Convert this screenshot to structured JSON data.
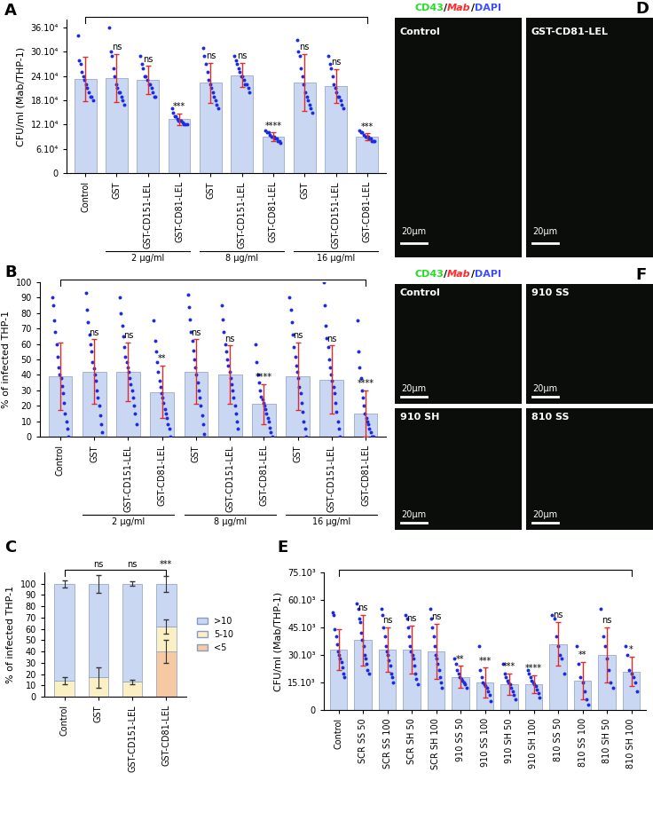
{
  "chart_data": [
    {
      "type": "bar",
      "title": "A",
      "y_label": "CFU/ml (Mab/THP-1)",
      "categories": [
        "Control",
        "GST",
        "GST-CD151-LEL",
        "GST-CD81-LEL",
        "GST",
        "GST-CD151-LEL",
        "GST-CD81-LEL",
        "GST",
        "GST-CD151-LEL",
        "GST-CD81-LEL"
      ],
      "category_groups": [
        null,
        "2 µg/ml",
        "2 µg/ml",
        "2 µg/ml",
        "8 µg/ml",
        "8 µg/ml",
        "8 µg/ml",
        "16 µg/ml",
        "16 µg/ml",
        "16 µg/ml"
      ],
      "values": [
        233000,
        235000,
        230000,
        133000,
        223000,
        242000,
        90000,
        224000,
        215000,
        90000
      ],
      "errors": [
        55000,
        60000,
        35000,
        15000,
        50000,
        30000,
        10000,
        70000,
        42000,
        8000
      ],
      "points": [
        [
          340000,
          280000,
          270000,
          250000,
          240000,
          230000,
          220000,
          210000,
          200000,
          190000,
          190000,
          180000
        ],
        [
          360000,
          300000,
          290000,
          260000,
          240000,
          220000,
          210000,
          200000,
          200000,
          190000,
          180000,
          170000
        ],
        [
          290000,
          270000,
          260000,
          240000,
          240000,
          230000,
          220000,
          220000,
          210000,
          200000,
          190000,
          190000
        ],
        [
          160000,
          150000,
          140000,
          140000,
          135000,
          130000,
          130000,
          130000,
          125000,
          120000,
          120000,
          120000
        ],
        [
          310000,
          290000,
          270000,
          250000,
          230000,
          220000,
          210000,
          200000,
          190000,
          180000,
          170000,
          160000
        ],
        [
          290000,
          280000,
          270000,
          260000,
          250000,
          240000,
          240000,
          230000,
          220000,
          220000,
          210000,
          200000
        ],
        [
          105000,
          100000,
          100000,
          95000,
          90000,
          90000,
          90000,
          85000,
          85000,
          80000,
          80000,
          75000
        ],
        [
          330000,
          300000,
          290000,
          260000,
          240000,
          220000,
          200000,
          190000,
          180000,
          170000,
          160000,
          150000
        ],
        [
          290000,
          270000,
          260000,
          240000,
          220000,
          210000,
          200000,
          190000,
          190000,
          180000,
          170000,
          160000
        ],
        [
          105000,
          100000,
          100000,
          95000,
          90000,
          90000,
          90000,
          85000,
          85000,
          80000,
          80000,
          80000
        ]
      ],
      "significance": [
        null,
        "ns",
        "ns",
        "***",
        "ns",
        "ns",
        "****",
        "ns",
        "ns",
        "***"
      ],
      "color": "#cad7f2",
      "ylim": [
        0,
        380000
      ],
      "yticks": [
        0,
        {
          "value": 60000,
          "label": "6.10⁴"
        },
        {
          "value": 120000,
          "label": "12.10⁴"
        },
        {
          "value": 180000,
          "label": "18.10⁴"
        },
        {
          "value": 240000,
          "label": "24.10⁴"
        },
        {
          "value": 300000,
          "label": "30.10⁴"
        },
        {
          "value": 360000,
          "label": "36.10⁴"
        }
      ]
    },
    {
      "type": "bar",
      "title": "B",
      "y_label": "% of infected THP-1",
      "categories": [
        "Control",
        "GST",
        "GST-CD151-LEL",
        "GST-CD81-LEL",
        "GST",
        "GST-CD151-LEL",
        "GST-CD81-LEL",
        "GST",
        "GST-CD151-LEL",
        "GST-CD81-LEL"
      ],
      "category_groups": [
        null,
        "2 µg/ml",
        "2 µg/ml",
        "2 µg/ml",
        "8 µg/ml",
        "8 µg/ml",
        "8 µg/ml",
        "16 µg/ml",
        "16 µg/ml",
        "16 µg/ml"
      ],
      "values": [
        39,
        42,
        42,
        29,
        42,
        40,
        21,
        39,
        37,
        15
      ],
      "errors": [
        22,
        21,
        19,
        17,
        21,
        19,
        13,
        22,
        22,
        15
      ],
      "points": [
        [
          90,
          85,
          75,
          68,
          60,
          52,
          45,
          40,
          38,
          33,
          28,
          22,
          15,
          10,
          5,
          0
        ],
        [
          93,
          82,
          74,
          66,
          60,
          55,
          48,
          44,
          40,
          36,
          30,
          25,
          20,
          14,
          8,
          3
        ],
        [
          90,
          80,
          72,
          65,
          58,
          52,
          48,
          45,
          42,
          38,
          34,
          30,
          25,
          20,
          15,
          8
        ],
        [
          75,
          62,
          55,
          48,
          42,
          36,
          32,
          28,
          25,
          22,
          18,
          15,
          12,
          8,
          5,
          0
        ],
        [
          92,
          84,
          76,
          68,
          62,
          56,
          50,
          45,
          40,
          35,
          30,
          25,
          20,
          14,
          8,
          2
        ],
        [
          85,
          76,
          68,
          60,
          55,
          50,
          46,
          42,
          38,
          34,
          30,
          25,
          20,
          15,
          10,
          5
        ],
        [
          60,
          48,
          40,
          35,
          30,
          26,
          24,
          22,
          20,
          18,
          15,
          12,
          10,
          6,
          3,
          0
        ],
        [
          90,
          82,
          74,
          66,
          58,
          52,
          46,
          42,
          38,
          32,
          28,
          22,
          16,
          10,
          5,
          0
        ],
        [
          100,
          85,
          72,
          64,
          58,
          50,
          45,
          40,
          36,
          32,
          28,
          22,
          16,
          10,
          5,
          0
        ],
        [
          75,
          55,
          45,
          38,
          30,
          25,
          20,
          15,
          12,
          10,
          8,
          5,
          3,
          0,
          0,
          0
        ]
      ],
      "significance": [
        null,
        "ns",
        "ns",
        "**",
        "ns",
        "ns",
        "****",
        "ns",
        "ns",
        "****"
      ],
      "color": "#cad7f2",
      "ylim": [
        0,
        100
      ],
      "yticks": [
        0,
        10,
        20,
        30,
        40,
        50,
        60,
        70,
        80,
        90,
        100
      ]
    },
    {
      "type": "bar",
      "stacked": true,
      "title": "C",
      "y_label": "% of infected THP-1",
      "categories": [
        "Control",
        "GST",
        "GST-CD151-LEL",
        "GST-CD81-LEL"
      ],
      "series": [
        {
          "name": "<5",
          "color": "#f6c9a2",
          "values": [
            0,
            0,
            0,
            40
          ],
          "errors": [
            0,
            0,
            0,
            10
          ]
        },
        {
          "name": "5-10",
          "color": "#fbf0c4",
          "values": [
            14,
            17,
            13,
            22
          ],
          "errors": [
            3,
            9,
            2,
            6
          ]
        },
        {
          "name": ">10",
          "color": "#cad7f2",
          "values": [
            86,
            83,
            87,
            38
          ],
          "errors": [
            3,
            8,
            2,
            7
          ]
        }
      ],
      "significance": [
        null,
        "ns",
        "ns",
        "***"
      ],
      "legend": "right",
      "ylim": [
        0,
        110
      ],
      "yticks": [
        0,
        10,
        20,
        30,
        40,
        50,
        60,
        70,
        80,
        90,
        100
      ]
    },
    {
      "type": "bar",
      "title": "E",
      "y_label": "CFU/ml (Mab/THP-1)",
      "categories": [
        "Control",
        "SCR SS 50",
        "SCR SS 100",
        "SCR SH 50",
        "SCR SH 100",
        "910 SS 50",
        "910 SS 100",
        "910 SH 50",
        "910 SH 100",
        "810 SS 50",
        "810 SS 100",
        "810 SH 50",
        "810 SH 100"
      ],
      "values": [
        33000,
        38000,
        33000,
        33000,
        32000,
        18000,
        15000,
        14000,
        14000,
        36000,
        16000,
        30000,
        21000
      ],
      "errors": [
        11000,
        14000,
        12000,
        13000,
        15000,
        6000,
        8000,
        6000,
        5000,
        12000,
        10000,
        15000,
        8000
      ],
      "points": [
        [
          53000,
          52000,
          44000,
          40000,
          36000,
          32000,
          30000,
          28000,
          26000,
          23000,
          20000,
          18000
        ],
        [
          58000,
          55000,
          50000,
          48000,
          42000,
          38000,
          35000,
          30000,
          28000,
          25000,
          22000,
          20000
        ],
        [
          55000,
          52000,
          45000,
          40000,
          35000,
          32000,
          30000,
          27000,
          24000,
          20000,
          18000,
          15000
        ],
        [
          52000,
          50000,
          45000,
          40000,
          35000,
          32000,
          30000,
          28000,
          24000,
          20000,
          17000,
          14000
        ],
        [
          55000,
          50000,
          45000,
          40000,
          35000,
          30000,
          28000,
          25000,
          22000,
          18000,
          15000,
          12000
        ],
        [
          28000,
          25000,
          22000,
          20000,
          18000,
          17000,
          16000,
          15000,
          14000,
          12000
        ],
        [
          35000,
          22000,
          18000,
          15000,
          14000,
          13000,
          12000,
          10000,
          8000,
          5000
        ],
        [
          25000,
          20000,
          18000,
          16000,
          15000,
          14000,
          12000,
          10000,
          8000,
          6000
        ],
        [
          22000,
          20000,
          18000,
          16000,
          15000,
          14000,
          13000,
          11000,
          9000,
          7000
        ],
        [
          52000,
          50000,
          40000,
          35000,
          30000,
          28000,
          20000
        ],
        [
          35000,
          25000,
          18000,
          15000,
          10000,
          6000,
          3000
        ],
        [
          55000,
          40000,
          35000,
          28000,
          22000,
          15000,
          12000
        ],
        [
          35000,
          30000,
          22000,
          20000,
          18000,
          15000,
          10000
        ]
      ],
      "significance": [
        null,
        "ns",
        "ns",
        "ns",
        "ns",
        "**",
        "***",
        "***",
        "****",
        "ns",
        "**",
        "ns",
        "*"
      ],
      "color": "#cad7f2",
      "ylim": [
        0,
        75000
      ],
      "yticks": [
        0,
        {
          "value": 15000,
          "label": "15.10³"
        },
        {
          "value": 30000,
          "label": "30.10³"
        },
        {
          "value": 45000,
          "label": "45.10³"
        },
        {
          "value": 60000,
          "label": "60.10³"
        },
        {
          "value": 75000,
          "label": "75.10³"
        }
      ]
    }
  ],
  "micrographs": [
    {
      "title": "D",
      "separator": "/",
      "channels": [
        {
          "name": "CD43",
          "color": "#22dd22"
        },
        {
          "name": "Mab",
          "color": "#ff2a2a"
        },
        {
          "name": "DAPI",
          "color": "#3b4dff"
        }
      ],
      "panels": [
        {
          "label": "Control",
          "scale_bar": "20μm"
        },
        {
          "label": "GST-CD81-LEL",
          "scale_bar": "20μm"
        }
      ]
    },
    {
      "title": "F",
      "separator": "/",
      "channels": [
        {
          "name": "CD43",
          "color": "#22dd22"
        },
        {
          "name": "Mab",
          "color": "#ff2a2a"
        },
        {
          "name": "DAPI",
          "color": "#3b4dff"
        }
      ],
      "panels": [
        {
          "label": "Control",
          "scale_bar": "20μm"
        },
        {
          "label": "910 SS",
          "scale_bar": "20μm"
        },
        {
          "label": "910 SH",
          "scale_bar": "20μm"
        },
        {
          "label": "810 SS",
          "scale_bar": "20μm"
        }
      ]
    }
  ]
}
